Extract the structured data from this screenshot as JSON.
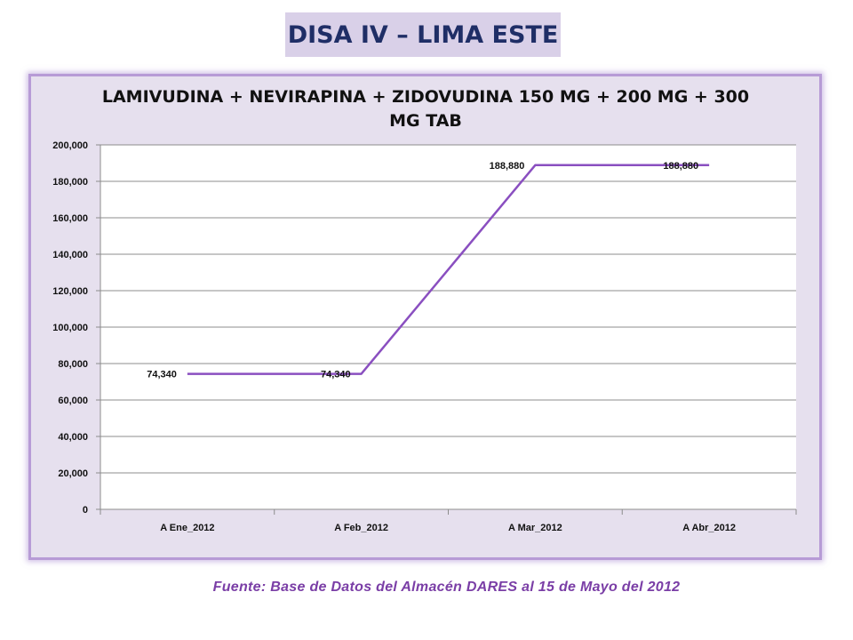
{
  "header": {
    "title": "DISA IV – LIMA ESTE"
  },
  "footer": {
    "source": "Fuente: Base de Datos del Almacén DARES al 15 de Mayo del 2012"
  },
  "colors": {
    "line": "#8a4fc0",
    "banner": "#d9d0e8",
    "panel": "#e6e0ee",
    "footer_text": "#7a3ea6"
  },
  "chart_data": {
    "type": "line",
    "title": "LAMIVUDINA + NEVIRAPINA + ZIDOVUDINA 150 MG + 200 MG + 300 MG TAB",
    "title_lines": [
      "LAMIVUDINA + NEVIRAPINA + ZIDOVUDINA 150 MG + 200 MG + 300",
      "MG TAB"
    ],
    "categories": [
      "A Ene_2012",
      "A Feb_2012",
      "A Mar_2012",
      "A Abr_2012"
    ],
    "series": [
      {
        "values": [
          74340,
          74340,
          188880,
          188880
        ]
      }
    ],
    "data_labels": [
      "74,340",
      "74,340",
      "188,880",
      "188,880"
    ],
    "ylim": [
      0,
      200000
    ],
    "yticks": [
      0,
      20000,
      40000,
      60000,
      80000,
      100000,
      120000,
      140000,
      160000,
      180000,
      200000
    ],
    "ytick_labels": [
      "0",
      "20,000",
      "40,000",
      "60,000",
      "80,000",
      "100,000",
      "120,000",
      "140,000",
      "160,000",
      "180,000",
      "200,000"
    ],
    "xlabel": "",
    "ylabel": "",
    "grid": true,
    "legend": "none"
  }
}
